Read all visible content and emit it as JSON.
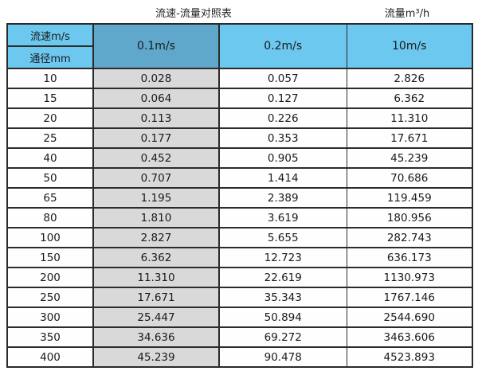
{
  "captions": {
    "left_title": "流速-流量对照表",
    "right_title": "流量m³/h"
  },
  "table": {
    "corner_top_label": "流速m/s",
    "corner_bottom_label": "通径mm",
    "velocity_columns": [
      "0.1m/s",
      "0.2m/s",
      "10m/s"
    ],
    "rows": [
      {
        "diameter": "10",
        "values": [
          "0.028",
          "0.057",
          "2.826"
        ]
      },
      {
        "diameter": "15",
        "values": [
          "0.064",
          "0.127",
          "6.362"
        ]
      },
      {
        "diameter": "20",
        "values": [
          "0.113",
          "0.226",
          "11.310"
        ]
      },
      {
        "diameter": "25",
        "values": [
          "0.177",
          "0.353",
          "17.671"
        ]
      },
      {
        "diameter": "40",
        "values": [
          "0.452",
          "0.905",
          "45.239"
        ]
      },
      {
        "diameter": "50",
        "values": [
          "0.707",
          "1.414",
          "70.686"
        ]
      },
      {
        "diameter": "65",
        "values": [
          "1.195",
          "2.389",
          "119.459"
        ]
      },
      {
        "diameter": "80",
        "values": [
          "1.810",
          "3.619",
          "180.956"
        ]
      },
      {
        "diameter": "100",
        "values": [
          "2.827",
          "5.655",
          "282.743"
        ]
      },
      {
        "diameter": "150",
        "values": [
          "6.362",
          "12.723",
          "636.173"
        ]
      },
      {
        "diameter": "200",
        "values": [
          "11.310",
          "22.619",
          "1130.973"
        ]
      },
      {
        "diameter": "250",
        "values": [
          "17.671",
          "35.343",
          "1767.146"
        ]
      },
      {
        "diameter": "300",
        "values": [
          "25.447",
          "50.894",
          "2544.690"
        ]
      },
      {
        "diameter": "350",
        "values": [
          "34.636",
          "69.272",
          "3463.606"
        ]
      },
      {
        "diameter": "400",
        "values": [
          "45.239",
          "90.478",
          "4523.893"
        ]
      }
    ]
  },
  "colors": {
    "header_blue": "#6dc8f0",
    "header_blue_dark": "#5fa8cc",
    "column_gray": "#d9d9d9",
    "border": "#2b2b2b"
  }
}
